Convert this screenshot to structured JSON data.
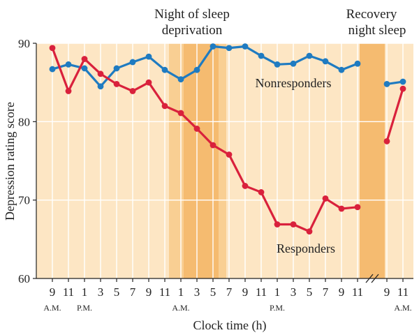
{
  "chart_data": {
    "type": "line",
    "title": "",
    "xlabel": "Clock time (h)",
    "ylabel": "Depression rating score",
    "ylim": [
      60,
      90
    ],
    "yticks": [
      60,
      70,
      80,
      90
    ],
    "categories": [
      "9",
      "11",
      "1",
      "3",
      "5",
      "7",
      "9",
      "11",
      "1",
      "3",
      "5",
      "7",
      "9",
      "11",
      "1",
      "3",
      "5",
      "7",
      "9",
      "11",
      "9",
      "11"
    ],
    "period_labels": [
      {
        "text": "A.M.",
        "at_index": 0
      },
      {
        "text": "P.M.",
        "at_index": 2
      },
      {
        "text": "A.M.",
        "at_index": 8
      },
      {
        "text": "P.M.",
        "at_index": 14
      },
      {
        "text": "A.M.",
        "at_index": 21
      }
    ],
    "annotations": {
      "sleep_deprivation": [
        "Night of sleep",
        "deprivation"
      ],
      "recovery": [
        "Recovery",
        "night sleep"
      ]
    },
    "axis_break_after_index": 19,
    "series": [
      {
        "name": "Nonresponders",
        "color": "#1f7bc1",
        "segments": [
          {
            "start_index": 0,
            "values": [
              86.7,
              87.3,
              86.8,
              84.5,
              86.8,
              87.6,
              88.3,
              86.6,
              85.4,
              86.6,
              89.6,
              89.4,
              89.6,
              88.4,
              87.3,
              87.4,
              88.4,
              87.7,
              86.6,
              87.4
            ]
          },
          {
            "start_index": 20,
            "values": [
              84.8,
              85.1
            ]
          }
        ]
      },
      {
        "name": "Responders",
        "color": "#d9213c",
        "segments": [
          {
            "start_index": 0,
            "values": [
              89.4,
              83.9,
              88.0,
              86.1,
              84.8,
              83.9,
              85.0,
              82.0,
              81.1,
              79.1,
              77.0,
              75.8,
              71.8,
              71.0,
              66.9,
              66.9,
              66.0,
              70.2,
              68.9,
              69.1
            ]
          },
          {
            "start_index": 20,
            "values": [
              77.5,
              84.2
            ]
          }
        ]
      }
    ],
    "colors": {
      "background": "#fde6c4",
      "deprivation_band": "#f9cf93",
      "deprivation_core": "#f5bb70",
      "recovery_band": "#f5bb70",
      "gridline": "#ffffff"
    }
  }
}
